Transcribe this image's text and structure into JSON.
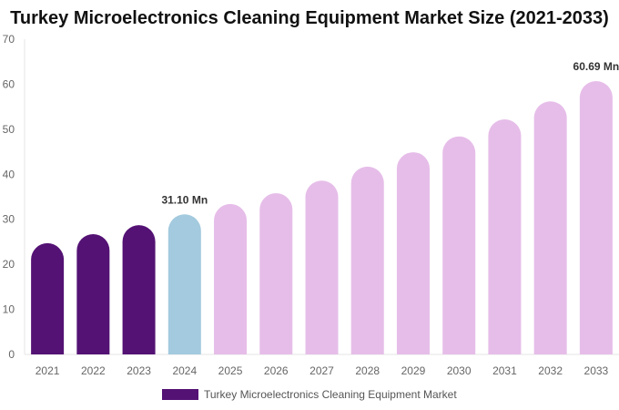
{
  "chart_data": {
    "type": "bar",
    "title": "Turkey Microelectronics Cleaning Equipment Market Size (2021-2033)",
    "categories": [
      "2021",
      "2022",
      "2023",
      "2024",
      "2025",
      "2026",
      "2027",
      "2028",
      "2029",
      "2030",
      "2031",
      "2032",
      "2033"
    ],
    "series": [
      {
        "name": "Turkey Microelectronics Cleaning Equipment Market",
        "values": [
          24.7,
          26.7,
          28.7,
          31.1,
          33.4,
          35.8,
          38.6,
          41.7,
          44.9,
          48.4,
          52.2,
          56.2,
          60.69
        ]
      }
    ],
    "bar_colors": [
      "#541274",
      "#541274",
      "#541274",
      "#a3cade",
      "#e6bde9",
      "#e6bde9",
      "#e6bde9",
      "#e6bde9",
      "#e6bde9",
      "#e6bde9",
      "#e6bde9",
      "#e6bde9",
      "#e6bde9"
    ],
    "data_labels": {
      "3": "31.10 Mn",
      "12": "60.69 Mn"
    },
    "yticks": [
      "0",
      "10",
      "20",
      "30",
      "40",
      "50",
      "60",
      "70"
    ],
    "ylim": [
      0,
      70
    ],
    "grid": false,
    "legend_position": "bottom",
    "legend_color": "#541274"
  }
}
